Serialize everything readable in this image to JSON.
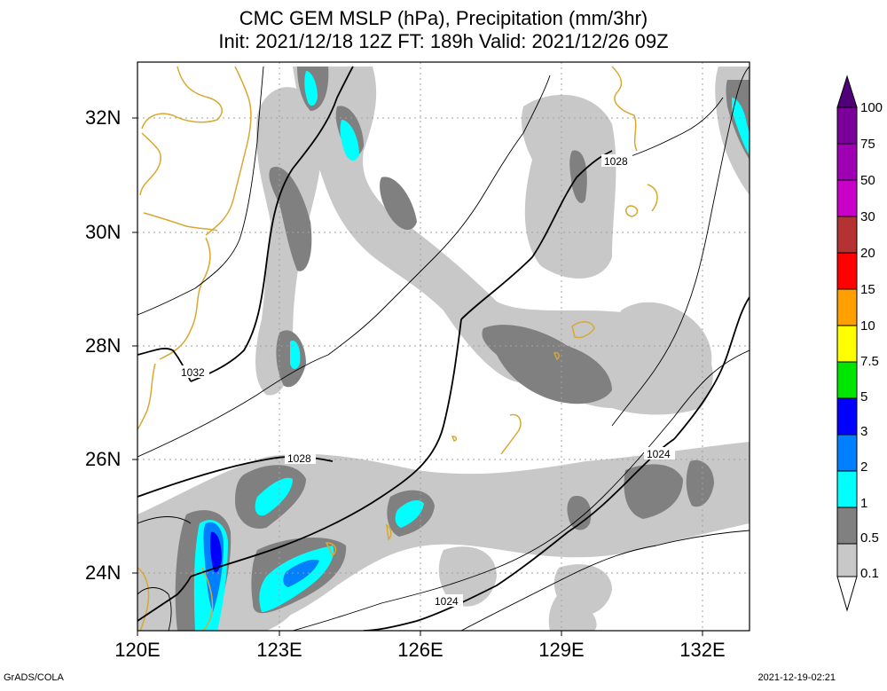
{
  "title": {
    "line1": "CMC GEM MSLP (hPa), Precipitation (mm/3hr)",
    "line2": "Init: 2021/12/18 12Z  FT: 189h  Valid: 2021/12/26 09Z"
  },
  "axes": {
    "lat_labels": [
      "32N",
      "30N",
      "28N",
      "26N",
      "24N"
    ],
    "lon_labels": [
      "120E",
      "123E",
      "126E",
      "129E",
      "132E"
    ]
  },
  "isobar_labels": [
    "1032",
    "1028",
    "1028",
    "1024",
    "1024"
  ],
  "colorbar": {
    "labels": [
      "100",
      "75",
      "50",
      "30",
      "20",
      "15",
      "10",
      "7.5",
      "5",
      "3",
      "2",
      "1",
      "0.5",
      "0.1"
    ],
    "colors": [
      "#7a0099",
      "#a000b4",
      "#c800c8",
      "#ff00ff",
      "#b43232",
      "#ff0000",
      "#ffa000",
      "#ffff00",
      "#00e600",
      "#0000ff",
      "#0080ff",
      "#00ffff",
      "#808080",
      "#c8c8c8"
    ]
  },
  "palette": {
    "coast": "#d8a830",
    "grid": "#a0a0a0",
    "precip_light": "#c8c8c8",
    "precip_mid": "#808080",
    "precip_cyan": "#00ffff",
    "precip_blue2": "#0080ff",
    "precip_blue3": "#0000ff"
  },
  "footer": {
    "left": "GrADS/COLA",
    "right": "2021-12-19-02:21"
  }
}
